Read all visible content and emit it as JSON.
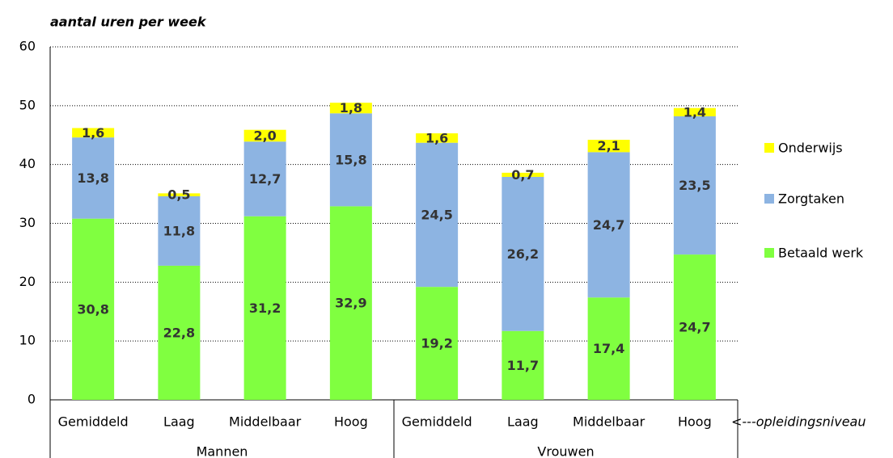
{
  "chart_data": {
    "type": "stacked-bar",
    "subtitle": "aantal uren per week",
    "categories": [
      "Gemiddeld",
      "Laag",
      "Middelbaar",
      "Hoog",
      "Gemiddeld",
      "Laag",
      "Middelbaar",
      "Hoog"
    ],
    "group_labels": [
      "Mannen",
      "Vrouwen"
    ],
    "annotation": "<---opleidingsniveau",
    "series": [
      {
        "name": "Betaald werk",
        "color": "#80ff40",
        "values": [
          30.8,
          22.8,
          31.2,
          32.9,
          19.2,
          11.7,
          17.4,
          24.7
        ],
        "value_labels": [
          "30,8",
          "22,8",
          "31,2",
          "32,9",
          "19,2",
          "11,7",
          "17,4",
          "24,7"
        ]
      },
      {
        "name": "Zorgtaken",
        "color": "#8db4e2",
        "values": [
          13.8,
          11.8,
          12.7,
          15.8,
          24.5,
          26.2,
          24.7,
          23.5
        ],
        "value_labels": [
          "13,8",
          "11,8",
          "12,7",
          "15,8",
          "24,5",
          "26,2",
          "24,7",
          "23,5"
        ]
      },
      {
        "name": "Onderwijs",
        "color": "#ffff00",
        "values": [
          1.6,
          0.5,
          2.0,
          1.8,
          1.6,
          0.7,
          2.1,
          1.4
        ],
        "value_labels": [
          "1,6",
          "0,5",
          "2,0",
          "1,8",
          "1,6",
          "0,7",
          "2,1",
          "1,4"
        ]
      }
    ],
    "ylim": [
      0,
      60
    ],
    "yticks": [
      0,
      10,
      20,
      30,
      40,
      50,
      60
    ],
    "grid": true,
    "legend": "right"
  }
}
